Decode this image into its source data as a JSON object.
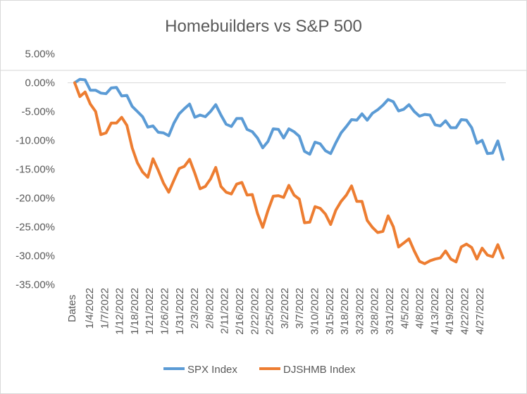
{
  "chart_data": {
    "type": "line",
    "title": "Homebuilders vs S&P 500",
    "xlabel": "",
    "ylabel": "",
    "x_axis_label": "Dates",
    "ylim": [
      -0.35,
      0.05
    ],
    "yticks": [
      "5.00%",
      "0.00%",
      "-5.00%",
      "-10.00%",
      "-15.00%",
      "-20.00%",
      "-25.00%",
      "-30.00%",
      "-35.00%"
    ],
    "xtick_labels": [
      "1/4/2022",
      "1/7/2022",
      "1/12/2022",
      "1/18/2022",
      "1/21/2022",
      "1/26/2022",
      "1/31/2022",
      "2/3/2022",
      "2/8/2022",
      "2/11/2022",
      "2/16/2022",
      "2/22/2022",
      "2/25/2022",
      "3/2/2022",
      "3/7/2022",
      "3/10/2022",
      "3/15/2022",
      "3/18/2022",
      "3/23/2022",
      "3/28/2022",
      "3/31/2022",
      "4/5/2022",
      "4/8/2022",
      "4/13/2022",
      "4/19/2022",
      "4/22/2022",
      "4/27/2022"
    ],
    "legend_position": "bottom",
    "grid": false,
    "series": [
      {
        "name": "SPX Index",
        "color": "#5B9BD5",
        "values": [
          0.0,
          0.6,
          0.5,
          -1.3,
          -1.3,
          -1.8,
          -1.9,
          -0.9,
          -0.8,
          -2.3,
          -2.2,
          -4.1,
          -5.0,
          -5.9,
          -7.7,
          -7.5,
          -8.6,
          -8.7,
          -9.2,
          -7.0,
          -5.4,
          -4.5,
          -3.7,
          -6.0,
          -5.6,
          -5.9,
          -5.0,
          -3.8,
          -5.6,
          -7.2,
          -7.6,
          -6.2,
          -6.2,
          -8.1,
          -8.5,
          -9.6,
          -11.3,
          -10.2,
          -8.0,
          -8.1,
          -9.6,
          -8.0,
          -8.5,
          -9.3,
          -11.9,
          -12.4,
          -10.3,
          -10.6,
          -11.8,
          -12.3,
          -10.4,
          -8.7,
          -7.6,
          -6.4,
          -6.5,
          -5.4,
          -6.5,
          -5.3,
          -4.7,
          -3.9,
          -2.9,
          -3.3,
          -4.9,
          -4.6,
          -3.8,
          -5.0,
          -5.8,
          -5.5,
          -5.6,
          -7.3,
          -7.5,
          -6.6,
          -7.8,
          -7.8,
          -6.4,
          -6.5,
          -7.8,
          -10.5,
          -10.0,
          -12.3,
          -12.2,
          -10.1,
          -13.3
        ]
      },
      {
        "name": "DJSHMB Index",
        "color": "#ED7D31",
        "values": [
          0.0,
          -2.4,
          -1.6,
          -3.7,
          -5.0,
          -9.0,
          -8.7,
          -7.0,
          -7.0,
          -6.0,
          -7.4,
          -11.3,
          -13.9,
          -15.5,
          -16.4,
          -13.2,
          -15.2,
          -17.4,
          -19.0,
          -16.9,
          -14.9,
          -14.5,
          -13.3,
          -15.7,
          -18.4,
          -18.0,
          -16.7,
          -14.7,
          -18.0,
          -19.0,
          -19.3,
          -17.6,
          -17.3,
          -19.5,
          -19.4,
          -22.7,
          -25.1,
          -22.2,
          -19.7,
          -19.6,
          -19.9,
          -17.8,
          -19.5,
          -20.2,
          -24.3,
          -24.2,
          -21.5,
          -21.8,
          -22.8,
          -24.6,
          -22.1,
          -20.6,
          -19.5,
          -17.9,
          -20.6,
          -20.6,
          -23.9,
          -25.1,
          -26.0,
          -25.8,
          -23.1,
          -25.0,
          -28.5,
          -27.8,
          -27.1,
          -29.2,
          -31.0,
          -31.4,
          -30.9,
          -30.6,
          -30.4,
          -29.2,
          -30.6,
          -31.1,
          -28.5,
          -28.0,
          -28.6,
          -30.6,
          -28.7,
          -29.9,
          -30.2,
          -28.1,
          -30.4
        ]
      }
    ]
  }
}
